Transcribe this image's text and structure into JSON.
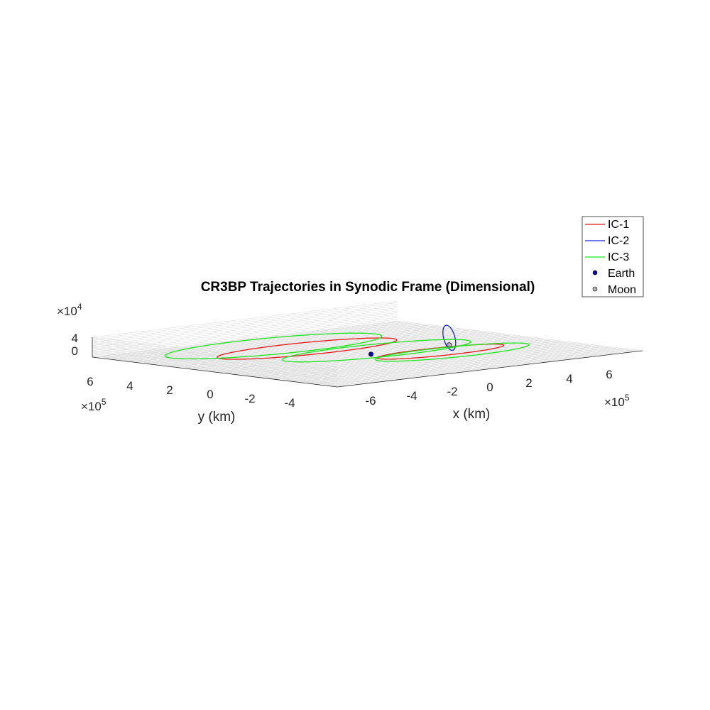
{
  "chart_data": {
    "type": "line",
    "projection": "3d",
    "title": "CR3BP Trajectories in Synodic Frame (Dimensional)",
    "xlabel": "x (km)",
    "ylabel": "y (km)",
    "zlabel": "",
    "x_ticks": [
      "-6",
      "-4",
      "-2",
      "0",
      "2",
      "4",
      "6"
    ],
    "x_exponent_base": "×10",
    "x_exponent_power": "5",
    "y_ticks": [
      "6",
      "4",
      "2",
      "0",
      "-2",
      "-4"
    ],
    "y_exponent_base": "×10",
    "y_exponent_power": "5",
    "z_ticks": [
      "4",
      "0"
    ],
    "z_exponent_base": "×10",
    "z_exponent_power": "4",
    "xlim": [
      -700000,
      800000
    ],
    "ylim": [
      -550000,
      700000
    ],
    "zlim": [
      -10000,
      60000
    ],
    "grid": true,
    "legend_position": "top-right",
    "legend": [
      "IC-1",
      "IC-2",
      "IC-3",
      "Earth",
      "Moon"
    ],
    "series": [
      {
        "name": "IC-1",
        "color": "#e8191a",
        "shape": "planar-loops",
        "loops": [
          {
            "cx": -50000,
            "cy": 280000,
            "rx": 420000,
            "ry": 140000
          },
          {
            "cx": 220000,
            "cy": -120000,
            "rx": 300000,
            "ry": 90000
          }
        ]
      },
      {
        "name": "IC-2",
        "color": "#1424d6",
        "shape": "lunar-halo",
        "center": [
          380000,
          0,
          25000
        ],
        "radius_y": 30000,
        "radius_z": 45000
      },
      {
        "name": "IC-3",
        "color": "#1ee61e",
        "shape": "planar-loops",
        "loops": [
          {
            "cx": -80000,
            "cy": 420000,
            "rx": 500000,
            "ry": 190000
          },
          {
            "cx": 240000,
            "cy": -160000,
            "rx": 360000,
            "ry": 120000
          },
          {
            "cx": 80000,
            "cy": 60000,
            "rx": 440000,
            "ry": 150000
          }
        ]
      }
    ],
    "bodies": [
      {
        "name": "Earth",
        "x": -4671,
        "y": 0,
        "z": 0,
        "color": "#0a0aa8"
      },
      {
        "name": "Moon",
        "x": 379729,
        "y": 0,
        "z": 0,
        "color": "#b4b4b4"
      }
    ]
  }
}
